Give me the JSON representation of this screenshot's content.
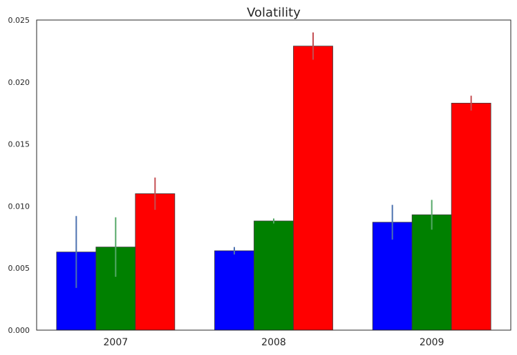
{
  "chart_data": {
    "type": "bar",
    "title": "Volatility",
    "xlabel": "",
    "ylabel": "",
    "categories": [
      "2007",
      "2008",
      "2009"
    ],
    "ylim": [
      0,
      0.025
    ],
    "yticks": [
      "0.000",
      "0.005",
      "0.010",
      "0.015",
      "0.020",
      "0.025"
    ],
    "grid": false,
    "series": [
      {
        "color": "#0000ff",
        "err_color": "#4c72b0",
        "values": [
          0.0063,
          0.0064,
          0.0087
        ],
        "errors": [
          0.0029,
          0.0003,
          0.0014
        ]
      },
      {
        "color": "#008000",
        "err_color": "#55a868",
        "values": [
          0.0067,
          0.0088,
          0.0093
        ],
        "errors": [
          0.0024,
          0.0002,
          0.0012
        ]
      },
      {
        "color": "#ff0000",
        "err_color": "#c44e52",
        "values": [
          0.011,
          0.0229,
          0.0183
        ],
        "errors": [
          0.0013,
          0.0011,
          0.0006
        ]
      }
    ]
  }
}
